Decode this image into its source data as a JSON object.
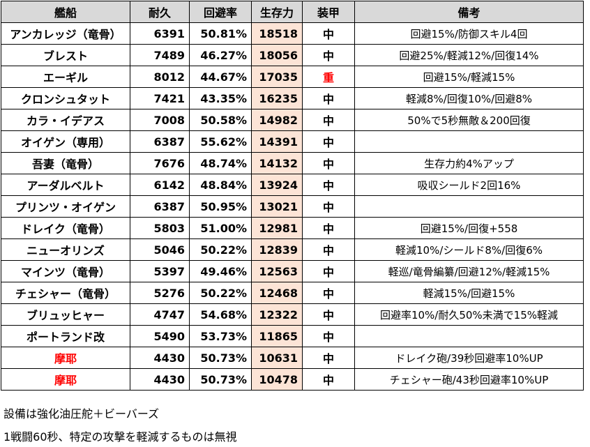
{
  "headers": [
    "艦船",
    "耐久",
    "回避率",
    "生存力",
    "装甲",
    "備考"
  ],
  "rows": [
    {
      "name": "アンカレッジ（竜骨）",
      "dur": "6391",
      "evade": "50.81%",
      "surv": "18518",
      "armor": "中",
      "note": "回避15%/防御スキル4回"
    },
    {
      "name": "ブレスト",
      "dur": "7489",
      "evade": "46.27%",
      "surv": "18056",
      "armor": "中",
      "note": "回避25%/軽減12%/回復14%"
    },
    {
      "name": "エーギル",
      "dur": "8012",
      "evade": "44.67%",
      "surv": "17035",
      "armor": "重",
      "note": "回避15%/軽減15%",
      "armor_red": true
    },
    {
      "name": "クロンシュタット",
      "dur": "7421",
      "evade": "43.35%",
      "surv": "16235",
      "armor": "中",
      "note": "軽減8%/回復10%/回避8%"
    },
    {
      "name": "カラ・イデアス",
      "dur": "7008",
      "evade": "50.58%",
      "surv": "14982",
      "armor": "中",
      "note": "50%で5秒無敵＆200回復"
    },
    {
      "name": "オイゲン（専用）",
      "dur": "6387",
      "evade": "55.62%",
      "surv": "14391",
      "armor": "中",
      "note": ""
    },
    {
      "name": "吾妻（竜骨）",
      "dur": "7676",
      "evade": "48.74%",
      "surv": "14132",
      "armor": "中",
      "note": "生存力約4%アップ"
    },
    {
      "name": "アーダルベルト",
      "dur": "6142",
      "evade": "48.84%",
      "surv": "13924",
      "armor": "中",
      "note": "吸収シールド2回16%"
    },
    {
      "name": "プリンツ・オイゲン",
      "dur": "6387",
      "evade": "50.95%",
      "surv": "13021",
      "armor": "中",
      "note": ""
    },
    {
      "name": "ドレイク（竜骨）",
      "dur": "5803",
      "evade": "51.00%",
      "surv": "12981",
      "armor": "中",
      "note": "回避15%/回復+558"
    },
    {
      "name": "ニューオリンズ",
      "dur": "5046",
      "evade": "50.22%",
      "surv": "12839",
      "armor": "中",
      "note": "軽減10%/シールド8%/回復6%"
    },
    {
      "name": "マインツ（竜骨）",
      "dur": "5397",
      "evade": "49.46%",
      "surv": "12563",
      "armor": "中",
      "note": "軽巡/竜骨編纂/回避12%/軽減15%"
    },
    {
      "name": "チェシャー（竜骨）",
      "dur": "5276",
      "evade": "50.22%",
      "surv": "12468",
      "armor": "中",
      "note": "軽減15%/回避15%"
    },
    {
      "name": "ブリュッヒャー",
      "dur": "4747",
      "evade": "54.68%",
      "surv": "12322",
      "armor": "中",
      "note": "回避率10%/耐久50%未満で15%軽減"
    },
    {
      "name": "ポートランド改",
      "dur": "5490",
      "evade": "53.73%",
      "surv": "11865",
      "armor": "中",
      "note": ""
    },
    {
      "name": "摩耶",
      "dur": "4430",
      "evade": "50.73%",
      "surv": "10631",
      "armor": "中",
      "note": "ドレイク砲/39秒回避率10%UP",
      "name_red": true
    },
    {
      "name": "摩耶",
      "dur": "4430",
      "evade": "50.73%",
      "surv": "10478",
      "armor": "中",
      "note": "チェシャー砲/43秒回避率10%UP",
      "name_red": true
    }
  ],
  "footer": [
    "設備は強化油圧舵＋ビーバーズ",
    "1戦闘60秒、特定の攻撃を軽減するものは無視"
  ],
  "colors": {
    "header_bg": "#d9d9d9",
    "survival_bg": "#fce4d6",
    "highlight_red": "#ff0000"
  }
}
